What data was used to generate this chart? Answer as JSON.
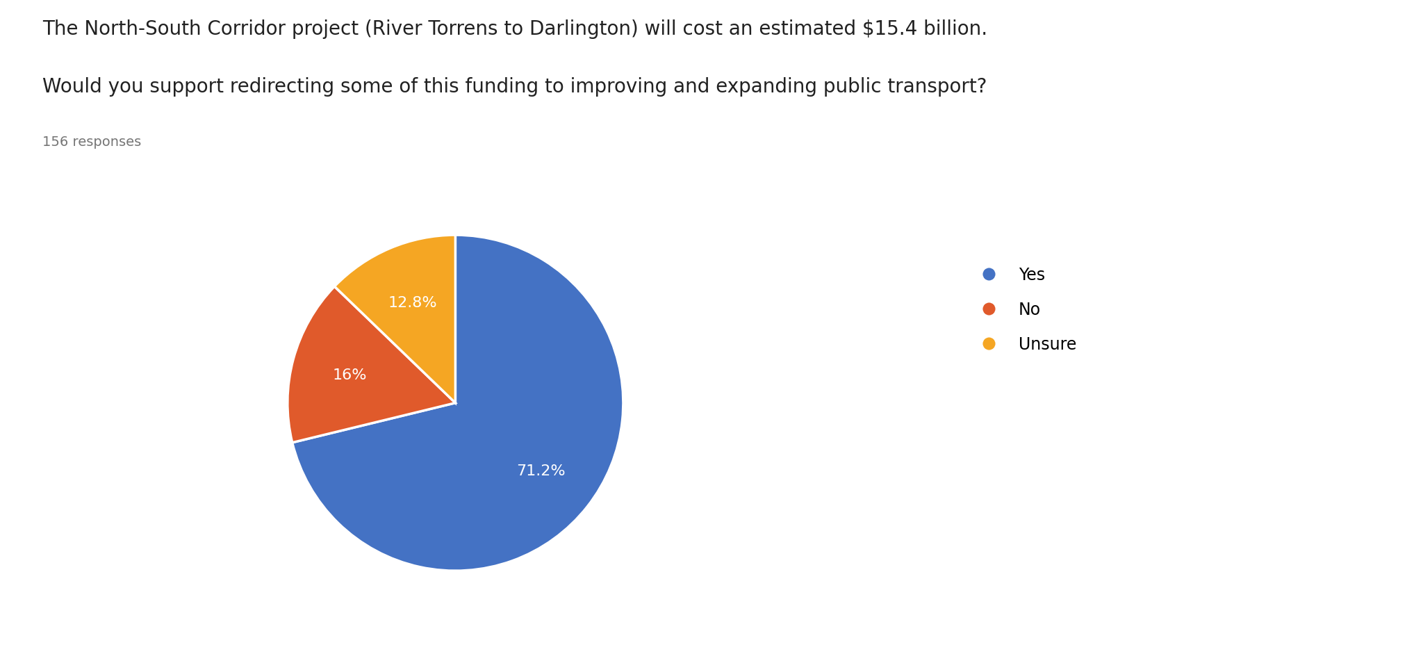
{
  "title_line1": "The North-South Corridor project (River Torrens to Darlington) will cost an estimated $15.4 billion.",
  "title_line2": "Would you support redirecting some of this funding to improving and expanding public transport?",
  "responses_label": "156 responses",
  "labels": [
    "Yes",
    "No",
    "Unsure"
  ],
  "values": [
    71.2,
    16.0,
    12.8
  ],
  "colors": [
    "#4472C4",
    "#E05A2B",
    "#F5A623"
  ],
  "autopct_labels": [
    "71.2%",
    "16%",
    "12.8%"
  ],
  "startangle": 90,
  "title_fontsize": 20,
  "responses_fontsize": 14,
  "legend_fontsize": 17,
  "autopct_fontsize": 16,
  "background_color": "#ffffff"
}
